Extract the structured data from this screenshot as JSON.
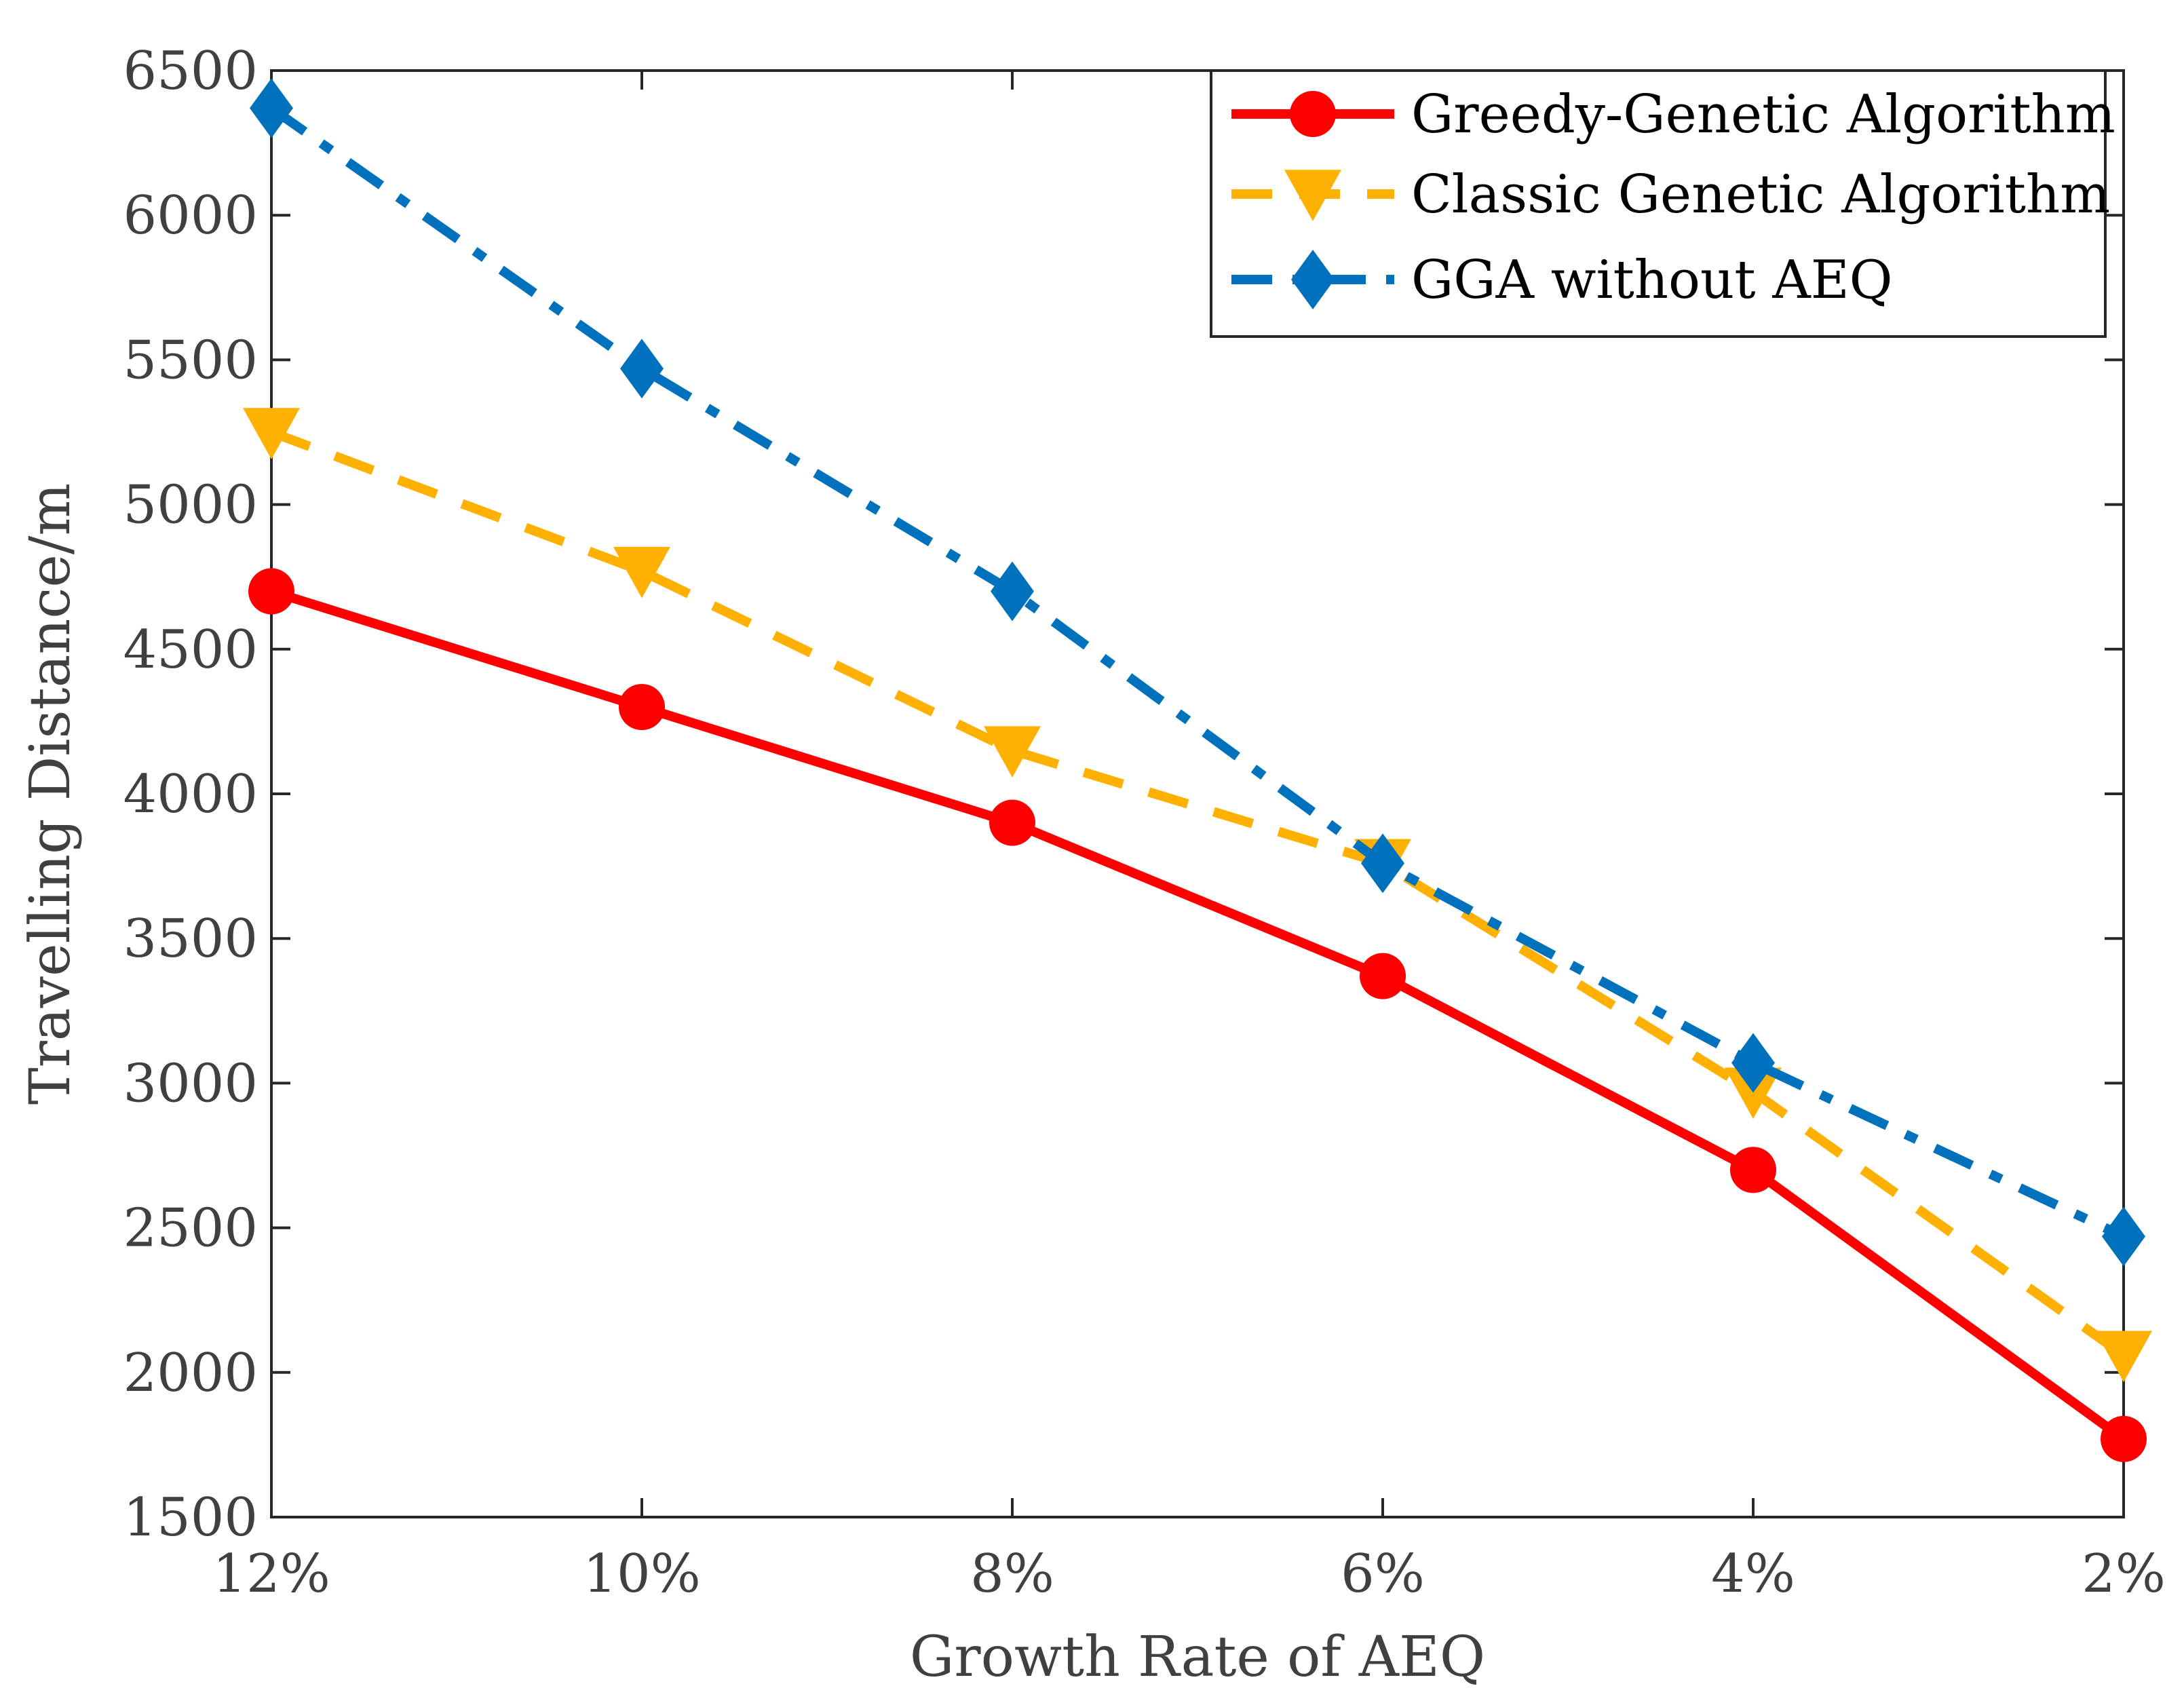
{
  "chart_data": {
    "type": "line",
    "title": "",
    "xlabel": "Growth Rate of AEQ",
    "ylabel": "Travelling Distance/m",
    "categories": [
      "12%",
      "10%",
      "8%",
      "6%",
      "4%",
      "2%"
    ],
    "ylim": [
      1500,
      6500
    ],
    "yticks": [
      1500,
      2000,
      2500,
      3000,
      3500,
      4000,
      4500,
      5000,
      5500,
      6000,
      6500
    ],
    "grid": false,
    "legend_position": "top-right",
    "series": [
      {
        "name": "Greedy-Genetic Algorithm",
        "values": [
          4700,
          4300,
          3900,
          3370,
          2700,
          1770
        ],
        "color": "#ff0000",
        "marker": "circle",
        "line_style": "solid"
      },
      {
        "name": "Classic Genetic Algorithm",
        "values": [
          5250,
          4770,
          4150,
          3760,
          2970,
          2060
        ],
        "color": "#ffb000",
        "marker": "triangle-down",
        "line_style": "dashed"
      },
      {
        "name": "GGA without AEQ",
        "values": [
          6370,
          5470,
          4700,
          3760,
          3070,
          2470
        ],
        "color": "#0072bd",
        "marker": "diamond",
        "line_style": "dash-dot"
      }
    ]
  }
}
